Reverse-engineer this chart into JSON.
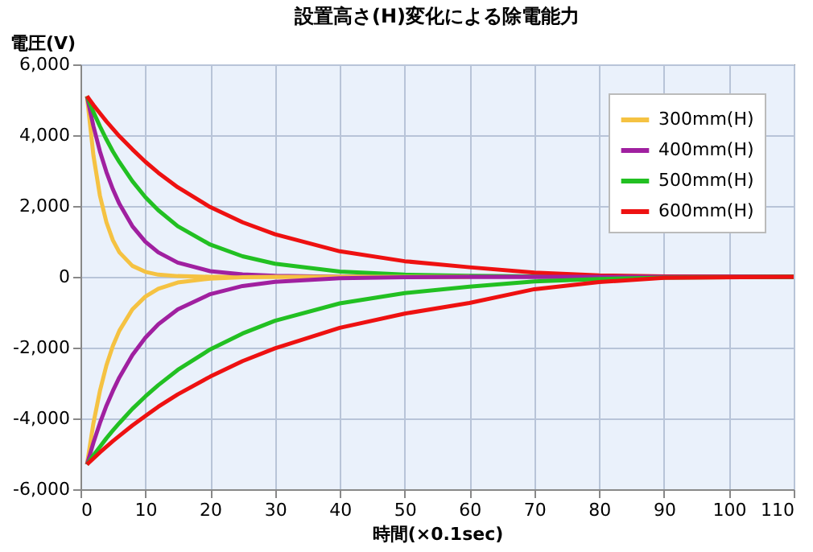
{
  "chart_data": {
    "type": "line",
    "title": "設置高さ(H)変化による除電能力",
    "xlabel": "時間(×0.1sec)",
    "ylabel": "電圧(V)",
    "x": [
      1,
      2,
      3,
      4,
      5,
      6,
      8,
      10,
      12,
      15,
      20,
      25,
      30,
      40,
      50,
      60,
      70,
      80,
      90,
      110
    ],
    "series": [
      {
        "name": "300mm(H)",
        "color": "#f5c242",
        "values": [
          5100,
          3420,
          2290,
          1540,
          1030,
          690,
          310,
          140,
          60,
          20,
          0,
          0,
          0,
          0,
          0,
          0,
          null,
          null,
          null,
          null
        ]
      },
      {
        "name": "400mm(H)",
        "color": "#a020a0",
        "values": [
          5100,
          4250,
          3540,
          2960,
          2470,
          2060,
          1430,
          990,
          690,
          400,
          160,
          70,
          30,
          0,
          0,
          0,
          0,
          0,
          0,
          0
        ]
      },
      {
        "name": "500mm(H)",
        "color": "#22c022",
        "values": [
          5100,
          4650,
          4250,
          3880,
          3540,
          3240,
          2700,
          2250,
          1880,
          1430,
          910,
          580,
          370,
          150,
          60,
          30,
          10,
          0,
          0,
          0
        ]
      },
      {
        "name": "600mm(H)",
        "color": "#ee1111",
        "values": [
          5100,
          4850,
          4620,
          4390,
          4180,
          3970,
          3600,
          3250,
          2940,
          2530,
          1970,
          1540,
          1200,
          720,
          440,
          270,
          120,
          40,
          10,
          0
        ]
      },
      {
        "color": "#f5c242",
        "values": [
          -5300,
          -4130,
          -3220,
          -2500,
          -1950,
          -1520,
          -920,
          -560,
          -340,
          -160,
          -50,
          -10,
          0,
          0,
          0,
          0,
          null,
          null,
          null,
          null
        ]
      },
      {
        "color": "#a020a0",
        "values": [
          -5300,
          -4680,
          -4130,
          -3640,
          -3220,
          -2840,
          -2210,
          -1720,
          -1340,
          -920,
          -490,
          -260,
          -140,
          -40,
          -10,
          0,
          0,
          0,
          0,
          0
        ]
      },
      {
        "color": "#22c022",
        "values": [
          -5300,
          -5040,
          -4800,
          -4560,
          -4340,
          -4130,
          -3730,
          -3380,
          -3060,
          -2630,
          -2050,
          -1600,
          -1240,
          -750,
          -460,
          -280,
          -130,
          -60,
          -20,
          0
        ]
      },
      {
        "color": "#ee1111",
        "values": [
          -5300,
          -5130,
          -4960,
          -4800,
          -4640,
          -4490,
          -4200,
          -3930,
          -3670,
          -3320,
          -2820,
          -2380,
          -2020,
          -1440,
          -1040,
          -740,
          -350,
          -150,
          -30,
          0
        ]
      }
    ],
    "xlim": [
      0,
      110
    ],
    "xticks": [
      0,
      10,
      20,
      30,
      40,
      50,
      60,
      70,
      80,
      90,
      100,
      110
    ],
    "ylim": [
      -6000,
      6000
    ],
    "yticks": [
      {
        "value": -6000,
        "label": "-6,000"
      },
      {
        "value": -4000,
        "label": "-4,000"
      },
      {
        "value": -2000,
        "label": "-2,000"
      },
      0,
      {
        "value": 2000,
        "label": "2,000"
      },
      {
        "value": 4000,
        "label": "4,000"
      },
      {
        "value": 6000,
        "label": "6,000"
      }
    ],
    "grid": true,
    "legend": "top right",
    "marker": "none",
    "line_style": "solid"
  }
}
